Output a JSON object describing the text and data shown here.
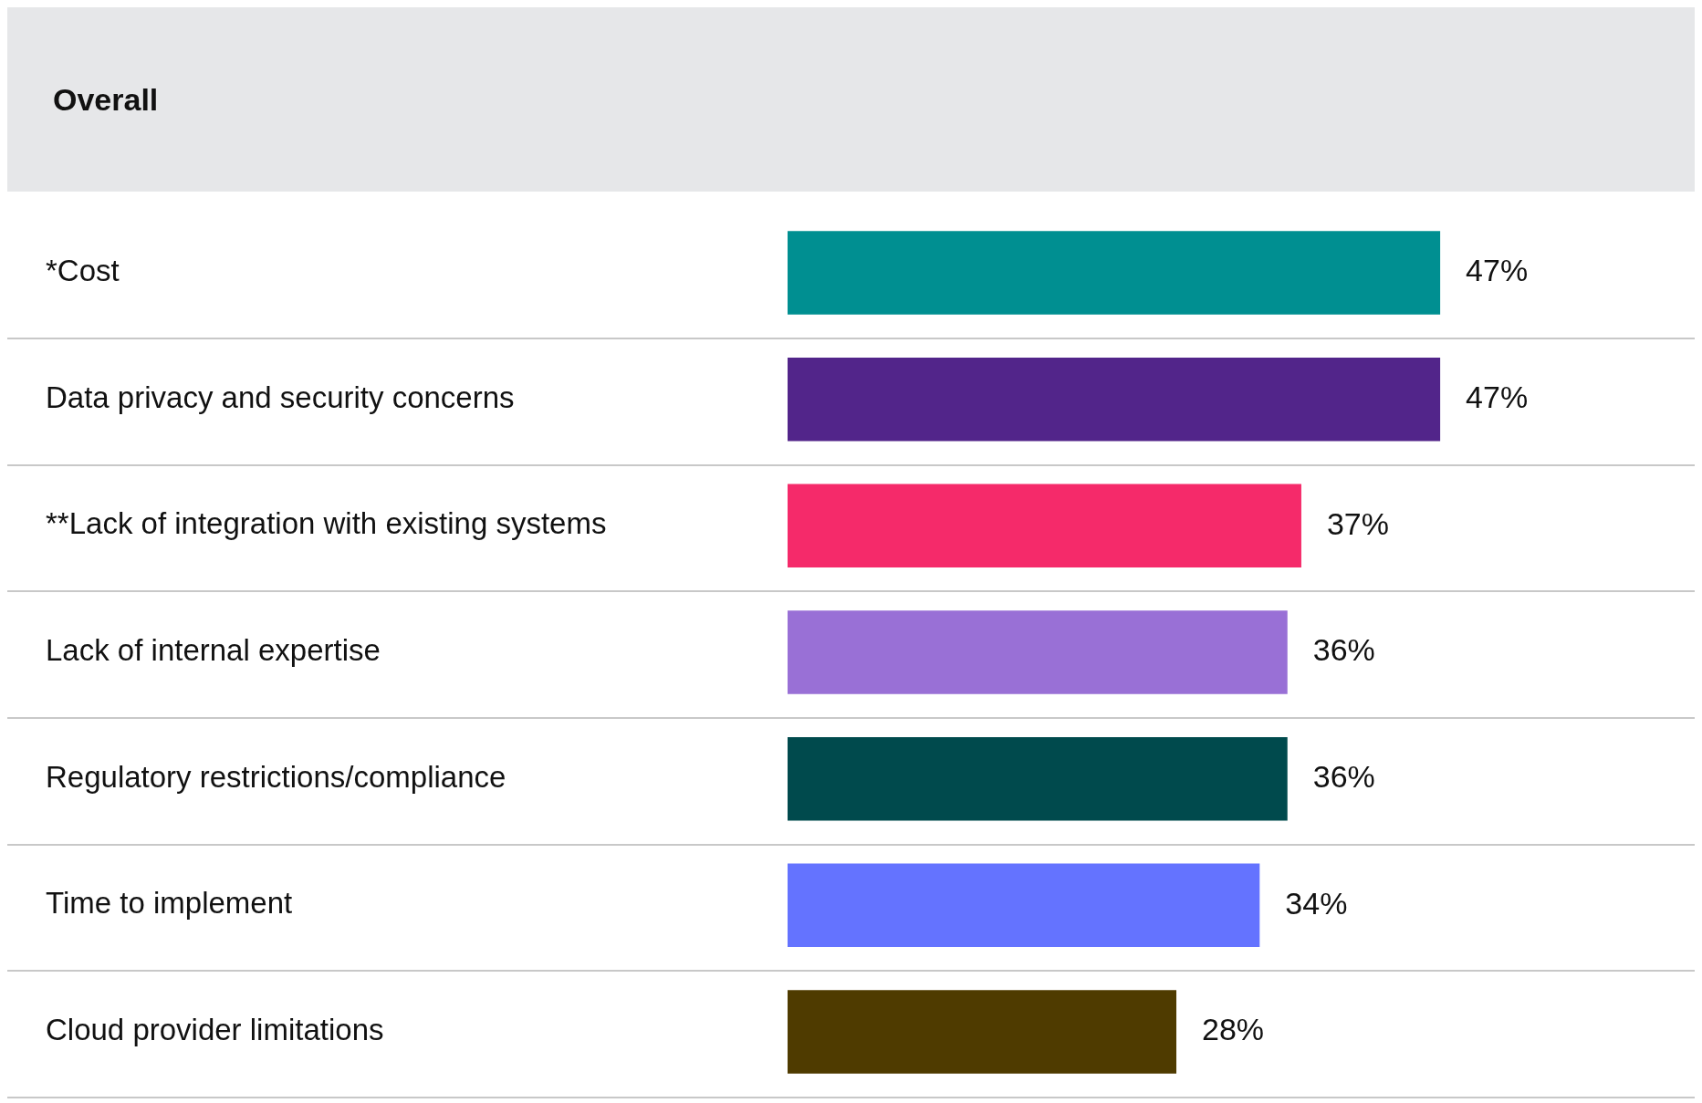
{
  "chart_data": {
    "type": "bar",
    "orientation": "horizontal",
    "title": "Overall",
    "categories": [
      "*Cost",
      "Data privacy and security concerns",
      "**Lack of integration with existing systems",
      "Lack of internal expertise",
      "Regulatory restrictions/compliance",
      "Time to implement",
      "Cloud provider limitations"
    ],
    "values": [
      47,
      47,
      37,
      36,
      36,
      34,
      28
    ],
    "value_labels": [
      "47%",
      "47%",
      "37%",
      "36%",
      "36%",
      "34%",
      "28%"
    ],
    "colors": [
      "#008f91",
      "#52258a",
      "#f52a6a",
      "#9970d6",
      "#004a4d",
      "#6473ff",
      "#4f3b00"
    ],
    "grid": "y",
    "legend": false
  }
}
